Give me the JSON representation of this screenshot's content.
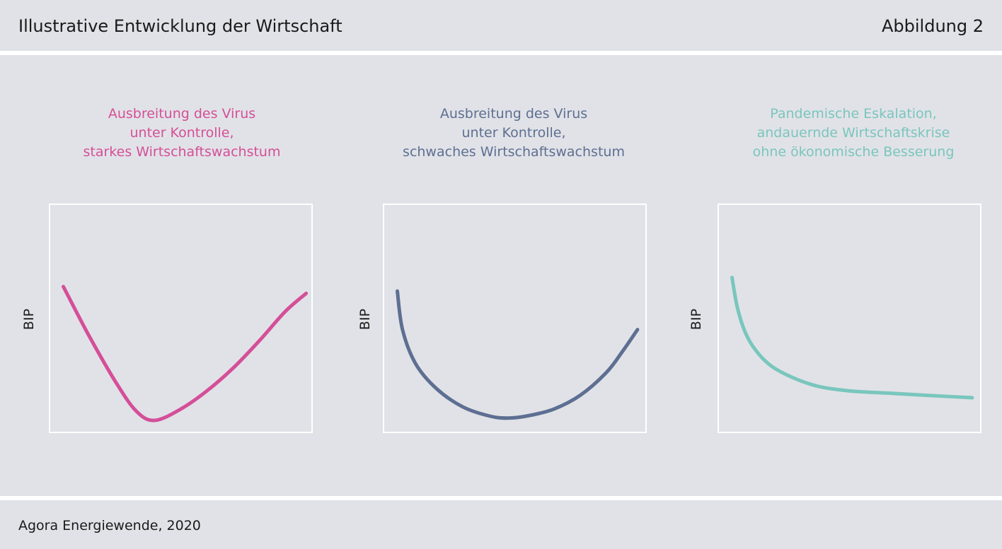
{
  "header": {
    "title": "Illustrative Entwicklung der Wirtschaft",
    "figure_label": "Abbildung 2"
  },
  "footer": {
    "source": "Agora Energiewende, 2020"
  },
  "colors": {
    "background": "#e1e2e7",
    "divider": "#ffffff",
    "scenario_strong": "#d44f98",
    "scenario_weak": "#5d6f92",
    "scenario_crisis": "#79c6bd"
  },
  "chart_data": [
    {
      "type": "line",
      "title": "Ausbreitung des Virus\nunter Kontrolle,\nstarkes Wirtschaftswachstum",
      "xlabel": "",
      "ylabel": "BIP",
      "illustrative": true,
      "color": "#d44f98",
      "xlim": [
        0,
        1
      ],
      "ylim": [
        0,
        1
      ],
      "series": [
        {
          "x": [
            0.05,
            0.15,
            0.25,
            0.33,
            0.4,
            0.5,
            0.6,
            0.7,
            0.8,
            0.9,
            0.98
          ],
          "y": [
            0.64,
            0.42,
            0.22,
            0.09,
            0.05,
            0.1,
            0.18,
            0.28,
            0.4,
            0.53,
            0.61
          ]
        }
      ]
    },
    {
      "type": "line",
      "title": "Ausbreitung des Virus\nunter Kontrolle,\nschwaches Wirtschaftswachstum",
      "xlabel": "",
      "ylabel": "BIP",
      "illustrative": true,
      "color": "#5d6f92",
      "xlim": [
        0,
        1
      ],
      "ylim": [
        0,
        1
      ],
      "series": [
        {
          "x": [
            0.05,
            0.07,
            0.12,
            0.2,
            0.3,
            0.4,
            0.47,
            0.55,
            0.65,
            0.75,
            0.85,
            0.91,
            0.97
          ],
          "y": [
            0.62,
            0.45,
            0.3,
            0.19,
            0.11,
            0.07,
            0.06,
            0.07,
            0.1,
            0.16,
            0.26,
            0.35,
            0.45
          ]
        }
      ]
    },
    {
      "type": "line",
      "title": "Pandemische Eskalation,\nandauernde Wirtschaftskrise\nohne ökonomische Besserung",
      "xlabel": "",
      "ylabel": "BIP",
      "illustrative": true,
      "color": "#79c6bd",
      "xlim": [
        0,
        1
      ],
      "ylim": [
        0,
        1
      ],
      "series": [
        {
          "x": [
            0.05,
            0.07,
            0.1,
            0.14,
            0.2,
            0.28,
            0.38,
            0.5,
            0.65,
            0.8,
            0.97
          ],
          "y": [
            0.68,
            0.55,
            0.44,
            0.36,
            0.29,
            0.24,
            0.2,
            0.18,
            0.17,
            0.16,
            0.15
          ]
        }
      ]
    }
  ]
}
